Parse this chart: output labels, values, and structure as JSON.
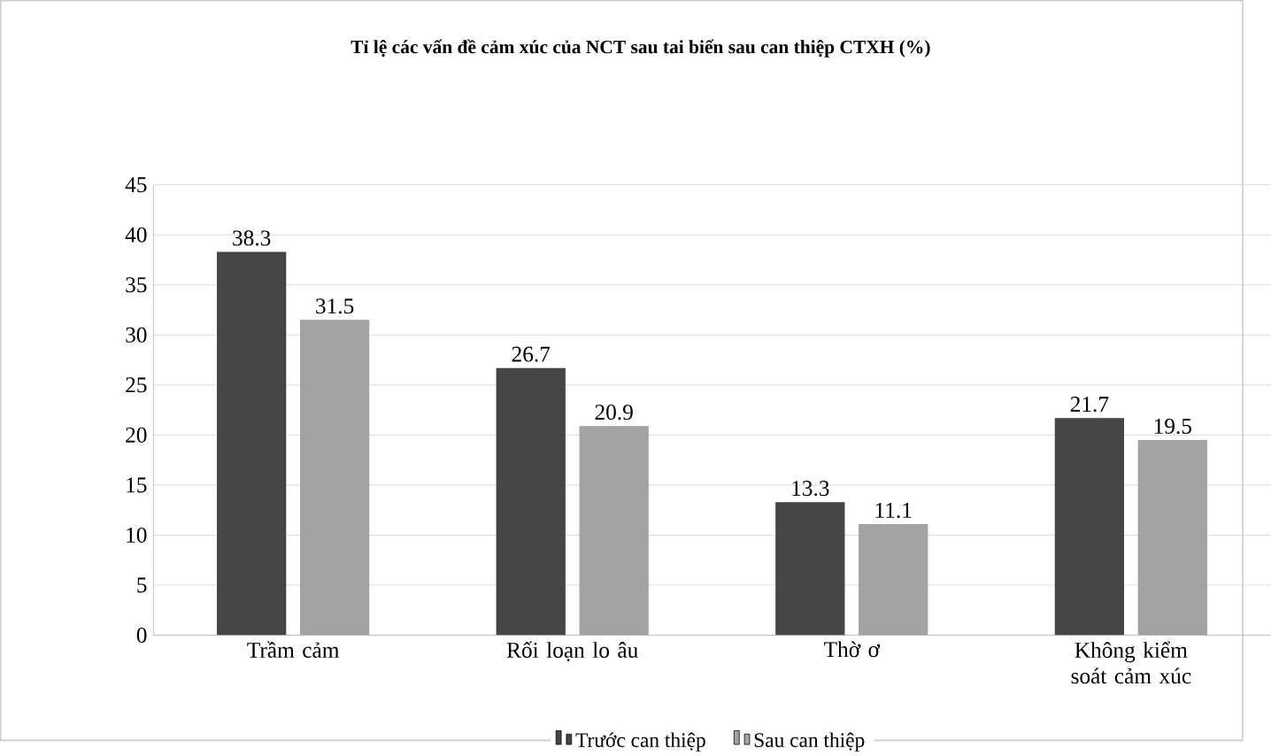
{
  "chart_data": {
    "type": "bar",
    "title": "Tỉ lệ các vấn đề cảm xúc của NCT sau tai biến sau can thiệp CTXH (%)",
    "categories": [
      "Trầm cảm",
      "Rối loạn lo âu",
      "Thờ ơ",
      "Không kiểm soát cảm xúc"
    ],
    "series": [
      {
        "name": "Trước can thiệp",
        "color": "#454545",
        "values": [
          38.3,
          26.7,
          13.3,
          21.7
        ]
      },
      {
        "name": "Sau can thiệp",
        "color": "#a3a3a3",
        "values": [
          31.5,
          20.9,
          11.1,
          19.5
        ]
      }
    ],
    "ylim": [
      0,
      45
    ],
    "yticks": [
      0,
      5,
      10,
      15,
      20,
      25,
      30,
      35,
      40,
      45
    ],
    "grid": "y",
    "legend": "bottom",
    "data_labels": true
  }
}
